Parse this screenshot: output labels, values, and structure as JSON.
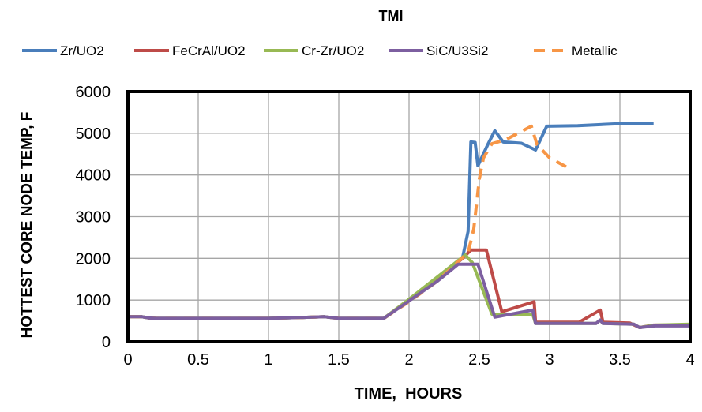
{
  "chart_data": {
    "type": "line",
    "title": "TMI",
    "xlabel": "TIME,  HOURS",
    "ylabel": "HOTTEST CORE NODE TEMP, F",
    "xlim": [
      0,
      4
    ],
    "ylim": [
      0,
      6000
    ],
    "xticks": [
      "0",
      "0.5",
      "1",
      "1.5",
      "2",
      "2.5",
      "3",
      "3.5",
      "4"
    ],
    "yticks": [
      "0",
      "1000",
      "2000",
      "3000",
      "4000",
      "5000",
      "6000"
    ],
    "grid": true,
    "legend_position": "top",
    "series": [
      {
        "name": "Zr/UO2",
        "color": "#4a7ebb",
        "dash": false,
        "x": [
          0,
          0,
          0.1,
          0.15,
          0.2,
          0.5,
          1.0,
          1.4,
          1.5,
          1.82,
          2.0,
          2.2,
          2.38,
          2.42,
          2.44,
          2.47,
          2.49,
          2.56,
          2.61,
          2.67,
          2.8,
          2.9,
          2.98,
          3.2,
          3.49,
          3.74
        ],
        "y": [
          1000,
          600,
          600,
          570,
          560,
          560,
          560,
          600,
          560,
          560,
          1000,
          1500,
          2000,
          2650,
          4790,
          4780,
          4220,
          4730,
          5060,
          4790,
          4760,
          4600,
          5170,
          5180,
          5230,
          5240
        ]
      },
      {
        "name": "FeCrAl/UO2",
        "color": "#be4b48",
        "dash": false,
        "x": [
          0,
          0,
          0.1,
          0.15,
          0.2,
          0.5,
          1.0,
          1.4,
          1.5,
          1.82,
          2.0,
          2.2,
          2.38,
          2.44,
          2.55,
          2.66,
          2.89,
          2.9,
          3.21,
          3.36,
          3.38,
          3.57,
          3.64,
          3.74,
          4.0
        ],
        "y": [
          1100,
          600,
          600,
          570,
          560,
          560,
          560,
          600,
          560,
          560,
          1000,
          1500,
          2000,
          2200,
          2200,
          720,
          960,
          470,
          470,
          760,
          470,
          450,
          340,
          400,
          400
        ]
      },
      {
        "name": "Cr-Zr/UO2",
        "color": "#98b954",
        "dash": false,
        "x": [
          0,
          0,
          0.1,
          0.15,
          0.2,
          0.5,
          1.0,
          1.4,
          1.5,
          1.82,
          2.0,
          2.2,
          2.4,
          2.45,
          2.59,
          2.88,
          2.9,
          3.33,
          3.36,
          3.38,
          3.6,
          3.64,
          3.75,
          4.0
        ],
        "y": [
          1700,
          600,
          600,
          570,
          560,
          560,
          560,
          600,
          560,
          560,
          1020,
          1550,
          2080,
          1900,
          660,
          660,
          440,
          440,
          520,
          440,
          420,
          340,
          400,
          420
        ]
      },
      {
        "name": "SiC/U3Si2",
        "color": "#7d5fa0",
        "dash": false,
        "x": [
          0,
          0,
          0.1,
          0.15,
          0.2,
          0.5,
          1.0,
          1.4,
          1.5,
          1.82,
          2.0,
          2.2,
          2.35,
          2.49,
          2.61,
          2.88,
          2.9,
          3.33,
          3.36,
          3.38,
          3.6,
          3.64,
          3.75,
          4.0
        ],
        "y": [
          800,
          600,
          600,
          570,
          560,
          560,
          560,
          600,
          560,
          560,
          980,
          1450,
          1860,
          1860,
          590,
          760,
          440,
          440,
          520,
          440,
          420,
          340,
          380,
          380
        ]
      },
      {
        "name": "Metallic",
        "color": "#f79646",
        "dash": true,
        "x": [
          0,
          0,
          0.1,
          0.15,
          0.2,
          0.5,
          1.0,
          1.4,
          1.5,
          1.82,
          2.0,
          2.2,
          2.42,
          2.46,
          2.5,
          2.53,
          2.59,
          2.69,
          2.87,
          2.91,
          3.0,
          3.12
        ],
        "y": [
          1000,
          600,
          600,
          570,
          560,
          560,
          560,
          600,
          560,
          560,
          960,
          1450,
          2140,
          2700,
          3900,
          4410,
          4750,
          4850,
          5170,
          4730,
          4410,
          4190
        ]
      }
    ]
  }
}
